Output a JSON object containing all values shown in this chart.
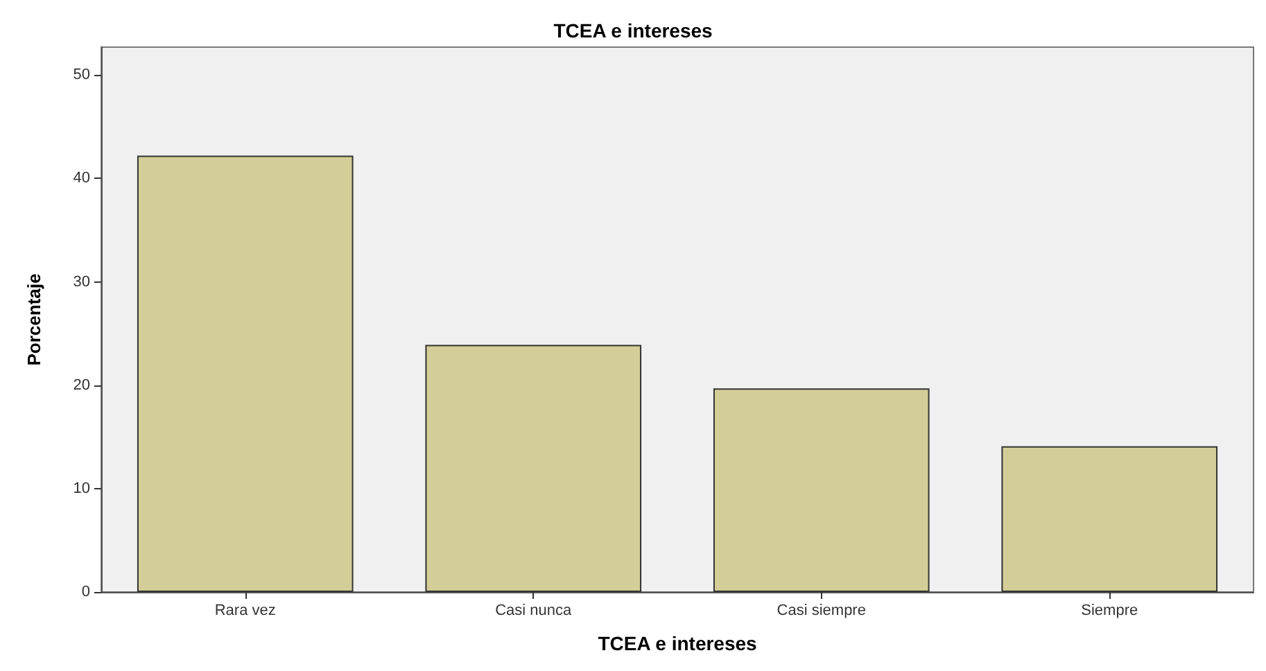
{
  "chart_data": {
    "type": "bar",
    "title": "TCEA e intereses",
    "xlabel": "TCEA e intereses",
    "ylabel": "Porcentaje",
    "categories": [
      "Rara vez",
      "Casi nunca",
      "Casi siempre",
      "Siempre"
    ],
    "values": [
      42.2,
      23.9,
      19.7,
      14.1
    ],
    "color": "#d3ce97",
    "ylim": [
      0,
      52.7
    ],
    "yticks": [
      0,
      10,
      20,
      30,
      40,
      50
    ],
    "grid": false
  }
}
